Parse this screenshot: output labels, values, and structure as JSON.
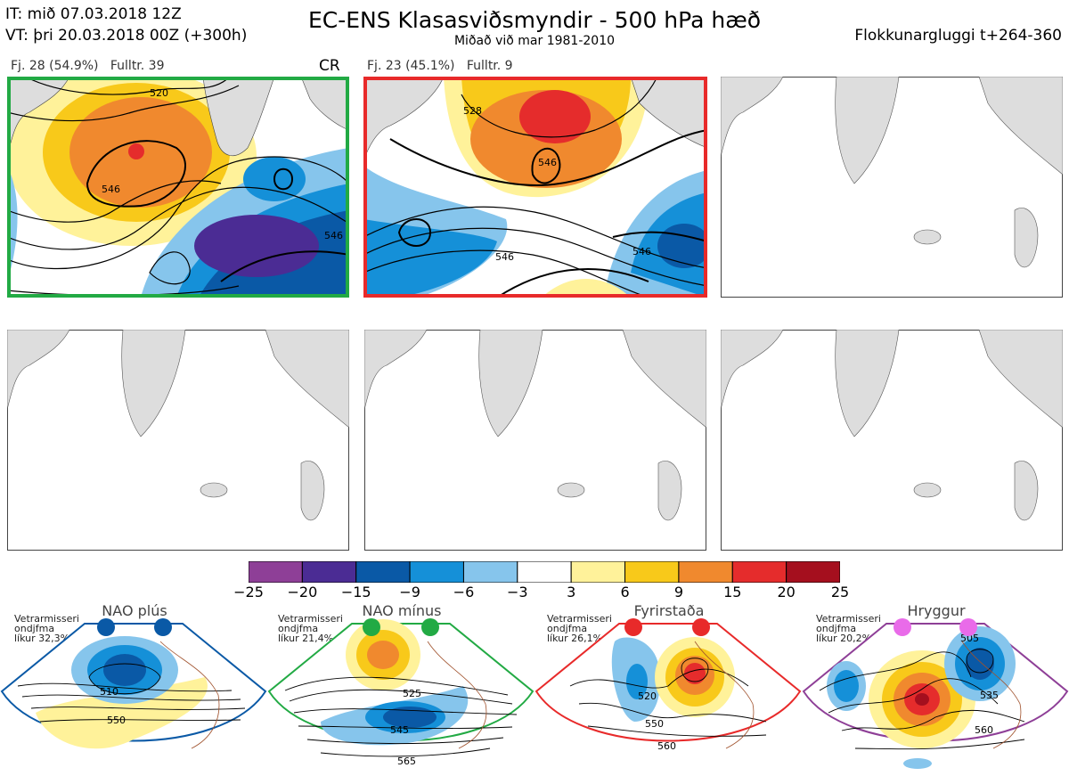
{
  "header": {
    "it": "IT: mið 07.03.2018 12Z",
    "vt": "VT: þri 20.03.2018 00Z  (+300h)",
    "title": "EC-ENS Klasasviðsmyndir - 500 hPa hæð",
    "subtitle": "Miðað við mar 1981-2010",
    "window": "Flokkunargluggi t+264-360"
  },
  "clusters": [
    {
      "label": "Fj. 28 (54.9%)",
      "fulltr": "Fulltr. 39",
      "tag": "CR",
      "border": "#22aa44",
      "contours": [
        "520",
        "546",
        "546"
      ]
    },
    {
      "label": "Fj. 23 (45.1%)",
      "fulltr": "Fulltr. 9",
      "tag": "",
      "border": "#e82a2a",
      "contours": [
        "528",
        "546",
        "546",
        "546"
      ]
    }
  ],
  "colorbar": {
    "ticks": [
      "−25",
      "−20",
      "−15",
      "−9",
      "−6",
      "−3",
      "3",
      "6",
      "9",
      "15",
      "20",
      "25"
    ],
    "colors": [
      "#8e3f97",
      "#4b2c94",
      "#0a59a6",
      "#1590d8",
      "#86c5ec",
      "#ffffff",
      "#fff29a",
      "#f8c91a",
      "#f0892e",
      "#e52c2c",
      "#a50f1e"
    ]
  },
  "regimes": [
    {
      "name": "NAO plús",
      "prob_line1": "Vetrarmisseri",
      "prob_line2": "ondjfma",
      "prob_line3": "líkur 32,3%",
      "color": "#0a59a6",
      "labels": [
        "510",
        "550"
      ]
    },
    {
      "name": "NAO mínus",
      "prob_line1": "Vetrarmisseri",
      "prob_line2": "ondjfma",
      "prob_line3": "líkur 21,4%",
      "color": "#22aa44",
      "labels": [
        "525",
        "545",
        "565"
      ]
    },
    {
      "name": "Fyrirstaða",
      "prob_line1": "Vetrarmisseri",
      "prob_line2": "ondjfma",
      "prob_line3": "líkur 26,1%",
      "color": "#e82a2a",
      "labels": [
        "520",
        "550",
        "560"
      ]
    },
    {
      "name": "Hryggur",
      "prob_line1": "Vetrarmisseri",
      "prob_line2": "ondjfma",
      "prob_line3": "líkur 20,2%",
      "color": "#e96be9",
      "labels": [
        "505",
        "535",
        "560"
      ]
    }
  ]
}
